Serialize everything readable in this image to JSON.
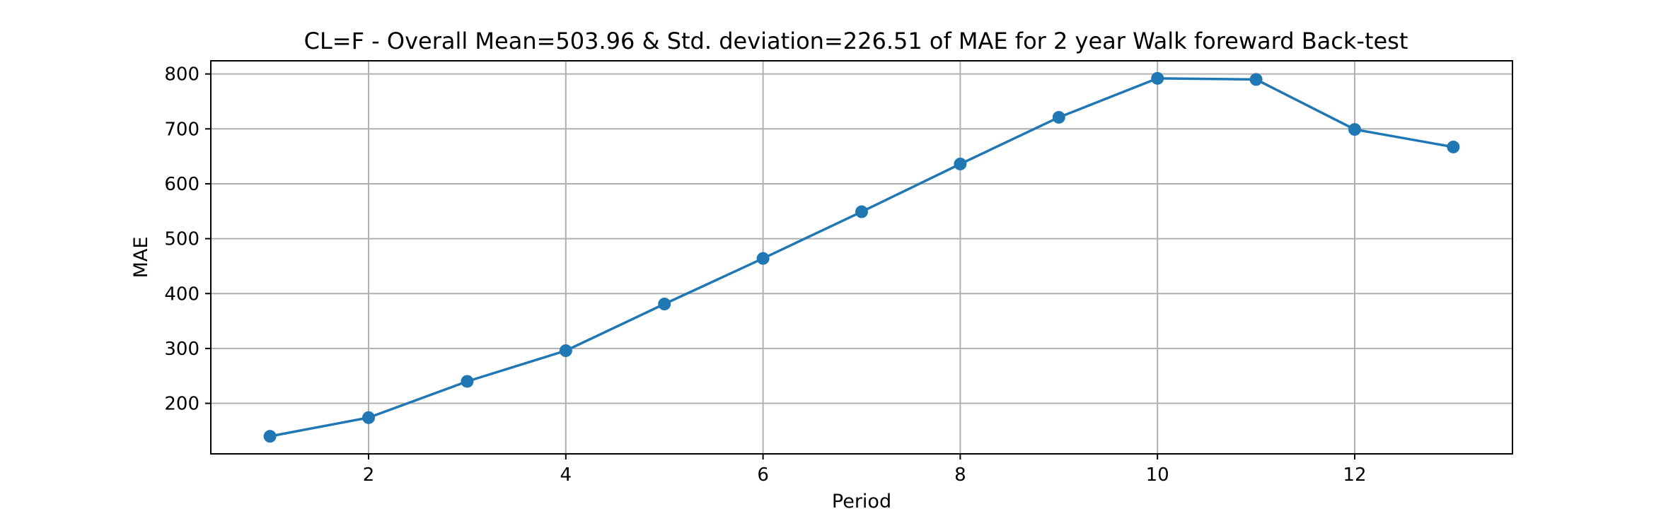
{
  "chart_data": {
    "type": "line",
    "title": "CL=F - Overall Mean=503.96 & Std. deviation=226.51 of MAE for 2 year Walk foreward Back-test",
    "xlabel": "Period",
    "ylabel": "MAE",
    "x": [
      1,
      2,
      3,
      4,
      5,
      6,
      7,
      8,
      9,
      10,
      11,
      12,
      13
    ],
    "series": [
      {
        "values": [
          140,
          174,
          240,
          296,
          381,
          464,
          549,
          636,
          721,
          792,
          790,
          699,
          667
        ],
        "color": "#1f77b4",
        "marker": "circle"
      }
    ],
    "xlim": [
      0.4,
      13.6
    ],
    "ylim": [
      108,
      824
    ],
    "xticks": [
      2,
      4,
      6,
      8,
      10,
      12
    ],
    "yticks": [
      200,
      300,
      400,
      500,
      600,
      700,
      800
    ],
    "grid": true,
    "legend": "none"
  }
}
